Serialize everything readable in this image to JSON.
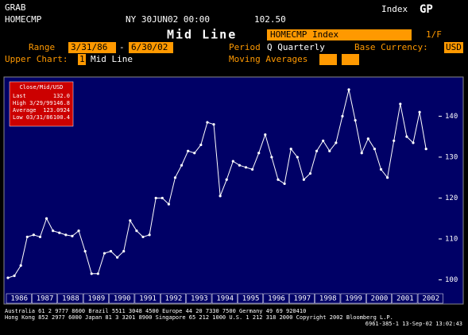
{
  "header": {
    "function": "GRAB",
    "security": "HOMECMP",
    "datetime": "NY 30JUN02 00:00",
    "price": "102.50",
    "market": "Index",
    "command": "GP",
    "screen_title": "Mid Line",
    "ticker_box": "HOMECMP Index",
    "page": "1/F",
    "range_label": "Range",
    "range_start": "3/31/86",
    "range_dash": "-",
    "range_end": "6/30/02",
    "period_label": "Period",
    "period_value": "Q Quarterly",
    "currency_label": "Base Currency:",
    "currency_value": "USD",
    "upper_chart_label": "Upper Chart:",
    "upper_chart_num": "1",
    "upper_chart_value": "Mid Line",
    "moving_avg_label": "Moving Averages"
  },
  "legend": {
    "title": "Close/Mid/USD",
    "rows": [
      [
        "Last",
        "132.0"
      ],
      [
        "High 3/29/99",
        "146.8"
      ],
      [
        "Average",
        "123.0924"
      ],
      [
        "Low 03/31/86",
        "100.4"
      ]
    ]
  },
  "chart_data": {
    "type": "line",
    "color": "#ffffff",
    "values": [
      100.5,
      101,
      103.5,
      110.5,
      111,
      110.5,
      115,
      112,
      111.5,
      111,
      110.7,
      112,
      107,
      101.5,
      101.5,
      106.5,
      107,
      105.5,
      107,
      114.5,
      112,
      110.5,
      111,
      120,
      120,
      118.5,
      125,
      128,
      131.5,
      131,
      133,
      138.5,
      138,
      120.5,
      124.5,
      129,
      128,
      127.5,
      127,
      131,
      135.5,
      130,
      124.5,
      123.5,
      132,
      130,
      124.5,
      126,
      131.5,
      134,
      131.5,
      133.5,
      140,
      146.5,
      139,
      131,
      134.5,
      132,
      127,
      125,
      134,
      143,
      135,
      133.5,
      141,
      132
    ],
    "xtick_labels": [
      "1986",
      "1987",
      "1988",
      "1989",
      "1990",
      "1991",
      "1992",
      "1993",
      "1994",
      "1995",
      "1996",
      "1997",
      "1998",
      "1999",
      "2000",
      "2001",
      "2002"
    ],
    "ylim": [
      97,
      149
    ],
    "yticks": [
      {
        "value": 100,
        "label": "100"
      },
      {
        "value": 110,
        "label": "110"
      },
      {
        "value": 120,
        "label": "120"
      },
      {
        "value": 130,
        "label": "130"
      },
      {
        "value": 140,
        "label": "140"
      }
    ]
  },
  "footer": {
    "lines": [
      "Australia 61 2 9777 8600   Brazil 5511 3048 4500   Europe 44 20 7330 7500   Germany 49 69 920410",
      "Hong Kong 852 2977 6000 Japan 81 3 3201 8900 Singapore 65 212 1000 U.S. 1 212 318 2000  Copyright 2002 Bloomberg L.P.",
      "6961-385-1 13-Sep-02 13:02:43"
    ]
  }
}
